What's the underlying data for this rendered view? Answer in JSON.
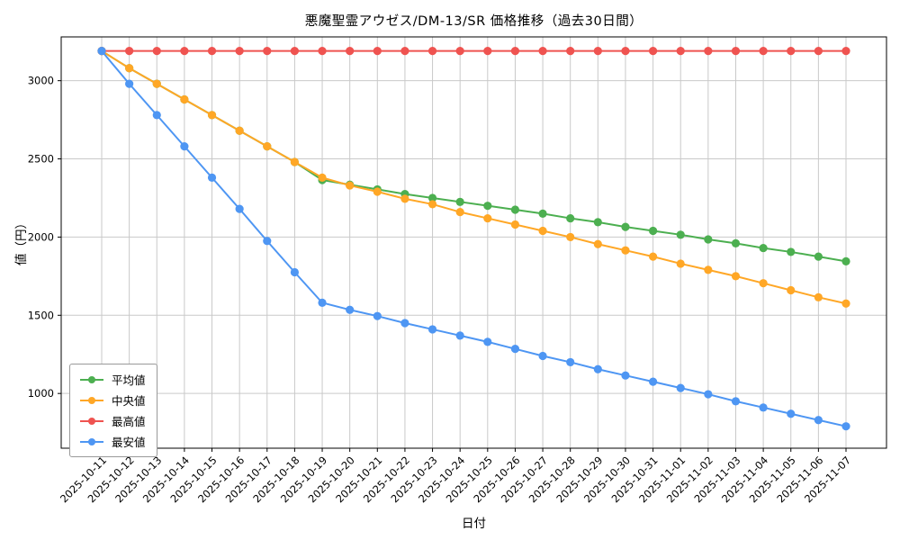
{
  "chart_data": {
    "type": "line",
    "title": "悪魔聖霊アウゼス/DM-13/SR 価格推移（過去30日間）",
    "xlabel": "日付",
    "ylabel": "値（円）",
    "x": [
      "2025-10-11",
      "2025-10-12",
      "2025-10-13",
      "2025-10-14",
      "2025-10-15",
      "2025-10-16",
      "2025-10-17",
      "2025-10-18",
      "2025-10-19",
      "2025-10-20",
      "2025-10-21",
      "2025-10-22",
      "2025-10-23",
      "2025-10-24",
      "2025-10-25",
      "2025-10-26",
      "2025-10-27",
      "2025-10-28",
      "2025-10-29",
      "2025-10-30",
      "2025-10-31",
      "2025-11-01",
      "2025-11-02",
      "2025-11-03",
      "2025-11-04",
      "2025-11-05",
      "2025-11-06",
      "2025-11-07"
    ],
    "series": [
      {
        "name": "平均値",
        "color": "#4caf50",
        "values": [
          3190,
          3080,
          2980,
          2880,
          2780,
          2680,
          2580,
          2480,
          2365,
          2335,
          2305,
          2275,
          2250,
          2225,
          2200,
          2175,
          2150,
          2120,
          2095,
          2065,
          2040,
          2015,
          1985,
          1960,
          1930,
          1905,
          1875,
          1845
        ]
      },
      {
        "name": "中央値",
        "color": "#ffa726",
        "values": [
          3190,
          3080,
          2980,
          2880,
          2780,
          2680,
          2580,
          2480,
          2380,
          2330,
          2290,
          2245,
          2210,
          2160,
          2120,
          2080,
          2040,
          2000,
          1955,
          1915,
          1875,
          1830,
          1790,
          1750,
          1705,
          1660,
          1615,
          1575
        ]
      },
      {
        "name": "最高値",
        "color": "#ef5350",
        "values": [
          3190,
          3190,
          3190,
          3190,
          3190,
          3190,
          3190,
          3190,
          3190,
          3190,
          3190,
          3190,
          3190,
          3190,
          3190,
          3190,
          3190,
          3190,
          3190,
          3190,
          3190,
          3190,
          3190,
          3190,
          3190,
          3190,
          3190,
          3190
        ]
      },
      {
        "name": "最安値",
        "color": "#4e96f3",
        "values": [
          3190,
          2980,
          2780,
          2580,
          2380,
          2180,
          1975,
          1775,
          1580,
          1535,
          1495,
          1450,
          1410,
          1370,
          1330,
          1285,
          1240,
          1200,
          1155,
          1115,
          1075,
          1035,
          995,
          950,
          910,
          870,
          830,
          790
        ]
      }
    ],
    "ylim": [
      650,
      3280
    ],
    "yticks": [
      1000,
      1500,
      2000,
      2500,
      3000
    ],
    "grid": true,
    "legend_position": "lower-left"
  }
}
